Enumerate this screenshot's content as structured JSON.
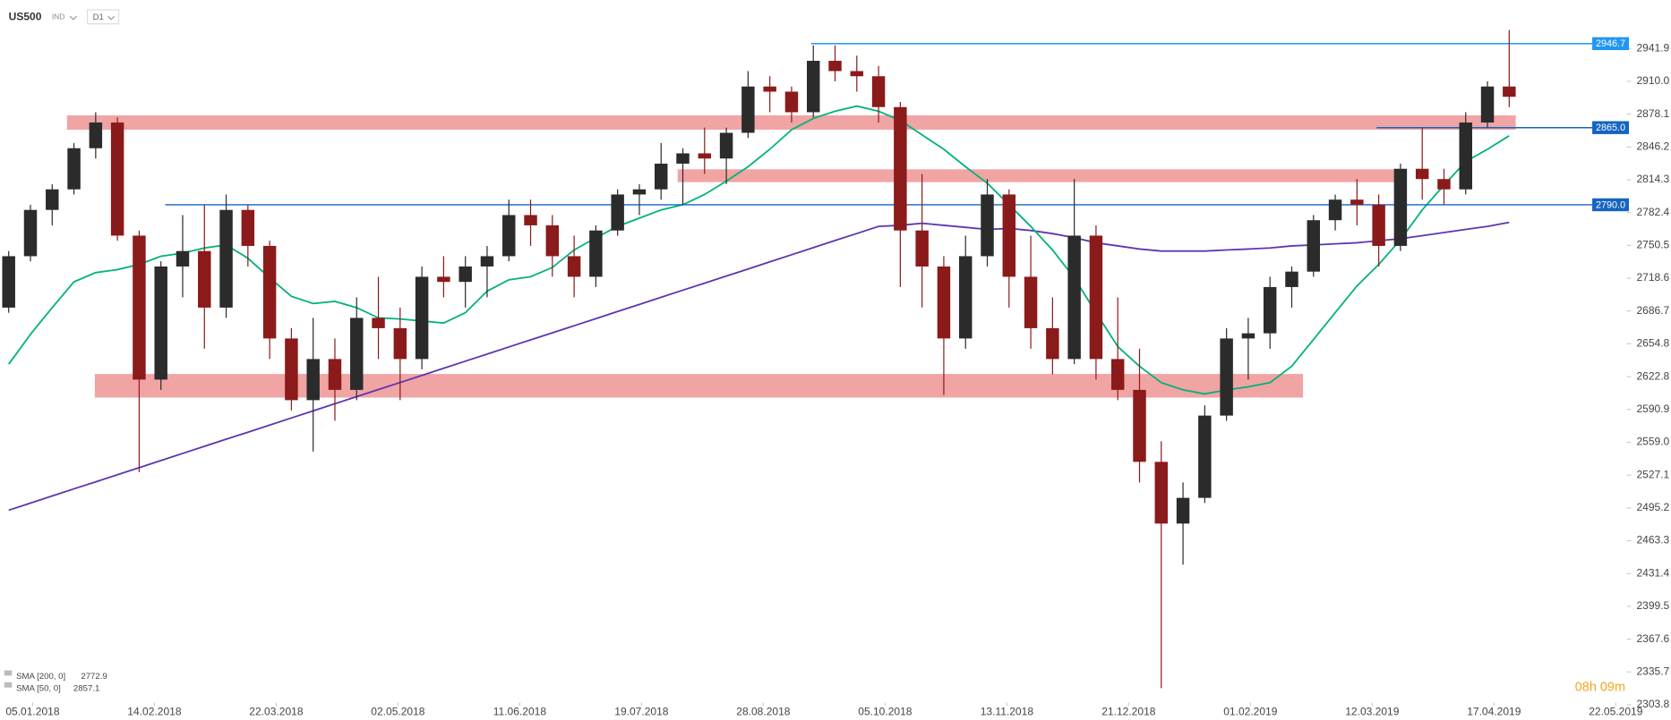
{
  "chart_data": {
    "type": "candlestick",
    "symbol": "US500",
    "instrument_type": "IND",
    "interval": "D1",
    "timer": "08h 09m",
    "up_color": "#2b2b2b",
    "down_color": "#8b1a1a",
    "x": [
      2,
      7,
      12,
      17,
      22,
      27,
      32,
      37,
      42,
      47,
      52,
      57,
      62,
      67,
      72,
      77,
      82,
      87,
      92,
      97,
      102,
      107,
      112,
      117,
      122,
      127,
      132,
      137,
      142,
      147,
      152,
      157,
      162,
      167,
      172,
      177,
      182,
      187,
      192,
      197,
      202,
      207,
      212,
      217,
      222,
      227,
      232,
      237,
      242,
      247,
      252,
      257,
      262,
      267,
      272,
      277,
      282,
      287,
      292,
      297,
      302,
      307,
      312,
      317,
      322,
      327,
      332,
      337,
      342,
      347
    ],
    "open": [
      2690,
      2740,
      2785,
      2805,
      2845,
      2870,
      2760,
      2620,
      2730,
      2745,
      2690,
      2785,
      2750,
      2660,
      2600,
      2640,
      2610,
      2680,
      2670,
      2640,
      2720,
      2715,
      2730,
      2740,
      2780,
      2770,
      2740,
      2720,
      2765,
      2800,
      2805,
      2830,
      2840,
      2835,
      2860,
      2905,
      2900,
      2880,
      2930,
      2920,
      2915,
      2885,
      2765,
      2730,
      2660,
      2740,
      2800,
      2720,
      2670,
      2640,
      2760,
      2640,
      2610,
      2540,
      2480,
      2505,
      2585,
      2660,
      2665,
      2710,
      2725,
      2775,
      2795,
      2790,
      2750,
      2825,
      2815,
      2805,
      2870,
      2905
    ],
    "high": [
      2745,
      2790,
      2810,
      2850,
      2880,
      2875,
      2765,
      2735,
      2780,
      2790,
      2800,
      2790,
      2755,
      2670,
      2680,
      2660,
      2700,
      2720,
      2690,
      2730,
      2740,
      2740,
      2750,
      2795,
      2795,
      2780,
      2760,
      2770,
      2805,
      2810,
      2850,
      2845,
      2865,
      2865,
      2920,
      2915,
      2905,
      2945,
      2945,
      2935,
      2925,
      2890,
      2820,
      2740,
      2760,
      2815,
      2805,
      2760,
      2700,
      2815,
      2770,
      2700,
      2650,
      2560,
      2520,
      2595,
      2670,
      2680,
      2720,
      2730,
      2780,
      2800,
      2815,
      2800,
      2830,
      2865,
      2825,
      2880,
      2910,
      2960
    ],
    "low": [
      2685,
      2735,
      2770,
      2800,
      2835,
      2755,
      2530,
      2610,
      2700,
      2650,
      2680,
      2730,
      2640,
      2590,
      2550,
      2580,
      2600,
      2640,
      2600,
      2630,
      2700,
      2690,
      2700,
      2735,
      2750,
      2720,
      2700,
      2710,
      2760,
      2780,
      2795,
      2790,
      2820,
      2810,
      2855,
      2880,
      2870,
      2875,
      2910,
      2900,
      2870,
      2710,
      2690,
      2605,
      2650,
      2730,
      2690,
      2650,
      2625,
      2635,
      2620,
      2600,
      2520,
      2320,
      2440,
      2500,
      2580,
      2620,
      2650,
      2690,
      2720,
      2765,
      2770,
      2730,
      2745,
      2795,
      2790,
      2800,
      2865,
      2885
    ],
    "close": [
      2740,
      2785,
      2805,
      2845,
      2870,
      2760,
      2620,
      2730,
      2745,
      2690,
      2785,
      2750,
      2660,
      2600,
      2640,
      2610,
      2680,
      2670,
      2640,
      2720,
      2715,
      2730,
      2740,
      2780,
      2770,
      2740,
      2720,
      2765,
      2800,
      2805,
      2830,
      2840,
      2835,
      2860,
      2905,
      2900,
      2880,
      2930,
      2920,
      2915,
      2885,
      2765,
      2730,
      2660,
      2740,
      2800,
      2720,
      2670,
      2640,
      2760,
      2640,
      2610,
      2540,
      2480,
      2505,
      2585,
      2660,
      2665,
      2710,
      2725,
      2775,
      2795,
      2790,
      2750,
      2825,
      2815,
      2805,
      2870,
      2905,
      2895
    ],
    "series": [
      {
        "name": "SMA [200, 0]",
        "color": "#5e35b1",
        "values": [
          2493,
          2499.9,
          2506.8,
          2513.7,
          2520.6,
          2527.5,
          2534.4,
          2541.3,
          2548.2,
          2555.1,
          2562,
          2568.9,
          2575.8,
          2582.7,
          2589.6,
          2596.5,
          2603.4,
          2610.3,
          2617.2,
          2624.1,
          2631,
          2637.9,
          2644.8,
          2651.7,
          2658.6,
          2665.5,
          2672.4,
          2679.3,
          2686.2,
          2693.1,
          2700,
          2706.9,
          2713.8,
          2720.7,
          2727.6,
          2734.5,
          2741.4,
          2748.3,
          2755.2,
          2762.1,
          2769,
          2770,
          2772,
          2770,
          2768,
          2766,
          2767,
          2765,
          2762,
          2758,
          2753,
          2750,
          2747,
          2745,
          2745,
          2745,
          2746,
          2747,
          2748,
          2750,
          2751,
          2752,
          2753,
          2755,
          2757,
          2760,
          2763,
          2766,
          2769,
          2772.9
        ]
      },
      {
        "name": "SMA [50, 0]",
        "color": "#00b37a",
        "values": [
          2635,
          2664,
          2690,
          2715,
          2724,
          2727,
          2732,
          2740,
          2743,
          2748,
          2751,
          2738,
          2719,
          2701,
          2694,
          2696,
          2690,
          2680,
          2679,
          2677,
          2675,
          2685,
          2706,
          2717,
          2720,
          2729,
          2746,
          2758,
          2769,
          2777,
          2785,
          2790,
          2800,
          2813,
          2827,
          2844,
          2863,
          2874,
          2881,
          2886,
          2881,
          2872,
          2858,
          2844,
          2827,
          2811,
          2790,
          2769,
          2746,
          2719,
          2685,
          2652,
          2633,
          2617,
          2610,
          2606,
          2610,
          2613,
          2617,
          2633,
          2659,
          2685,
          2711,
          2732,
          2756,
          2785,
          2809,
          2832,
          2844,
          2857.1
        ]
      }
    ],
    "zone_color": "#ef9a9a",
    "zones": [
      {
        "from": 15.4,
        "to": 348.5,
        "low": 2863,
        "high": 2877
      },
      {
        "from": 155.8,
        "to": 322.9,
        "low": 2812,
        "high": 2824.5
      },
      {
        "from": 21.8,
        "to": 299.6,
        "low": 2602.5,
        "high": 2625.5
      }
    ],
    "levels": [
      {
        "value": 2946.7,
        "from": 186.5,
        "color": "#2196f3"
      },
      {
        "value": 2865,
        "label": "2865.0",
        "from": 316.5,
        "color": "#1565c0"
      },
      {
        "value": 2790,
        "label": "2790.0",
        "from": 38,
        "color": "#1565c0"
      }
    ],
    "xlim": [
      0,
      384.2
    ],
    "xticks": [
      {
        "value": 7.5,
        "label": "05.01.2018"
      },
      {
        "value": 35.5,
        "label": "14.02.2018"
      },
      {
        "value": 63.5,
        "label": "22.03.2018"
      },
      {
        "value": 91.5,
        "label": "02.05.2018"
      },
      {
        "value": 119.5,
        "label": "11.06.2018"
      },
      {
        "value": 147.5,
        "label": "19.07.2018"
      },
      {
        "value": 175.5,
        "label": "28.08.2018"
      },
      {
        "value": 203.5,
        "label": "05.10.2018"
      },
      {
        "value": 231.5,
        "label": "13.11.2018"
      },
      {
        "value": 259.5,
        "label": "21.12.2018"
      },
      {
        "value": 287.5,
        "label": "01.02.2019"
      },
      {
        "value": 315.5,
        "label": "12.03.2019"
      },
      {
        "value": 343.5,
        "label": "17.04.2019"
      },
      {
        "value": 371.5,
        "label": "22.05.2019"
      }
    ],
    "ylim": [
      2289.1,
      2989.0
    ],
    "yticks": [
      2303.8,
      2335.7,
      2367.6,
      2399.5,
      2431.4,
      2463.3,
      2495.2,
      2527.1,
      {
        "value": 2559,
        "label": "2559.0"
      },
      2590.9,
      2622.8,
      2654.8,
      2686.7,
      2718.6,
      2750.5,
      2782.4,
      2814.3,
      2846.2,
      2878.1,
      {
        "value": 2910,
        "label": "2910.0"
      },
      2941.9
    ]
  }
}
